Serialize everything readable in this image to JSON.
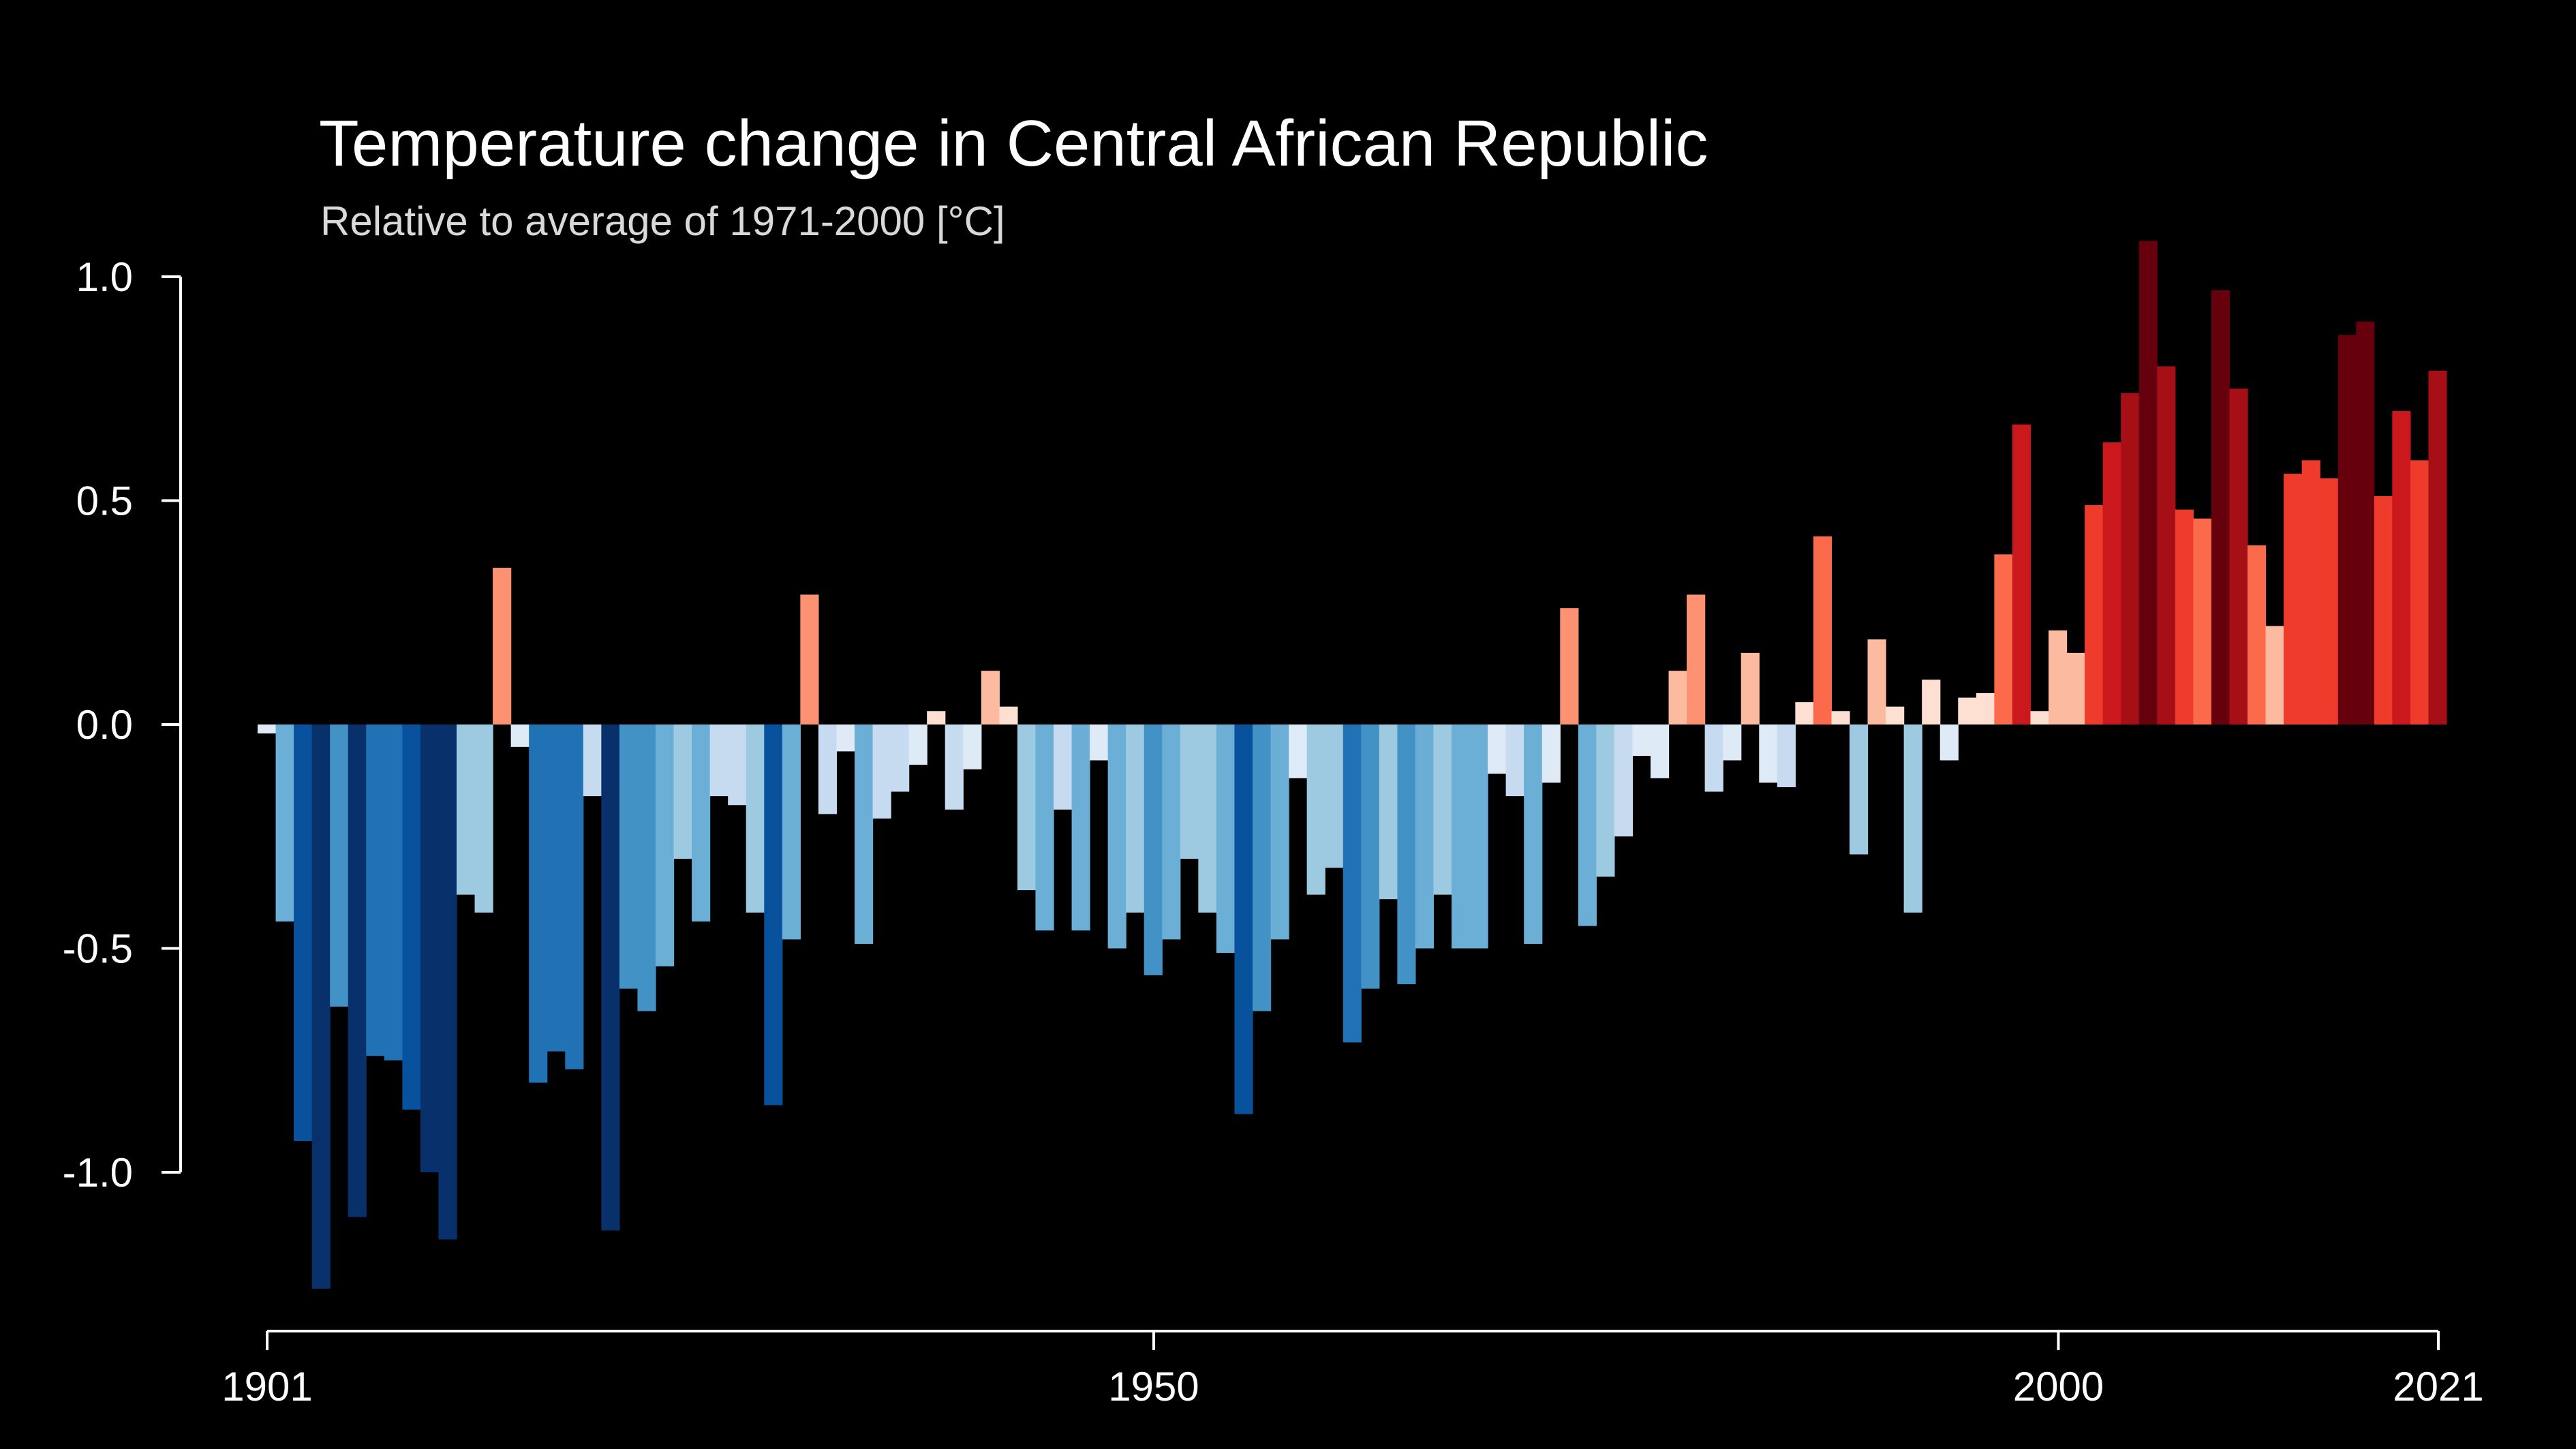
{
  "chart_data": {
    "type": "bar",
    "title": "Temperature change in Central African Republic",
    "subtitle": "Relative to average of 1971-2000  [°C]",
    "xlabel": "",
    "ylabel": "",
    "xlim": [
      1901,
      2021
    ],
    "ylim": [
      -1.35,
      1.1
    ],
    "grid": false,
    "legend": "none",
    "yticks": [
      {
        "value": 1.0,
        "label": "1.0"
      },
      {
        "value": 0.5,
        "label": "0.5"
      },
      {
        "value": 0.0,
        "label": "0.0"
      },
      {
        "value": -0.5,
        "label": "-0.5"
      },
      {
        "value": -1.0,
        "label": "-1.0"
      }
    ],
    "xticks": [
      {
        "value": 1901,
        "label": "1901"
      },
      {
        "value": 1950,
        "label": "1950"
      },
      {
        "value": 2000,
        "label": "2000"
      },
      {
        "value": 2021,
        "label": "2021"
      }
    ],
    "colors": {
      "background": "#000000",
      "text": "#ffffff",
      "cold_scale": [
        "#deebf7",
        "#c6dbef",
        "#9ecae1",
        "#6baed6",
        "#4292c6",
        "#2171b5",
        "#08519c",
        "#08306b"
      ],
      "warm_scale": [
        "#fee0d2",
        "#fcbba1",
        "#fc9272",
        "#fb6a4a",
        "#ef3b2c",
        "#cb181d",
        "#a50f15",
        "#67000d"
      ]
    },
    "x": [
      1901,
      1902,
      1903,
      1904,
      1905,
      1906,
      1907,
      1908,
      1909,
      1910,
      1911,
      1912,
      1913,
      1914,
      1915,
      1916,
      1917,
      1918,
      1919,
      1920,
      1921,
      1922,
      1923,
      1924,
      1925,
      1926,
      1927,
      1928,
      1929,
      1930,
      1931,
      1932,
      1933,
      1934,
      1935,
      1936,
      1937,
      1938,
      1939,
      1940,
      1941,
      1942,
      1943,
      1944,
      1945,
      1946,
      1947,
      1948,
      1949,
      1950,
      1951,
      1952,
      1953,
      1954,
      1955,
      1956,
      1957,
      1958,
      1959,
      1960,
      1961,
      1962,
      1963,
      1964,
      1965,
      1966,
      1967,
      1968,
      1969,
      1970,
      1971,
      1972,
      1973,
      1974,
      1975,
      1976,
      1977,
      1978,
      1979,
      1980,
      1981,
      1982,
      1983,
      1984,
      1985,
      1986,
      1987,
      1988,
      1989,
      1990,
      1991,
      1992,
      1993,
      1994,
      1995,
      1996,
      1997,
      1998,
      1999,
      2000,
      2001,
      2002,
      2003,
      2004,
      2005,
      2006,
      2007,
      2008,
      2009,
      2010,
      2011,
      2012,
      2013,
      2014,
      2015,
      2016,
      2017,
      2018,
      2019,
      2020,
      2021
    ],
    "values": [
      -0.02,
      -0.44,
      -0.93,
      -1.26,
      -0.63,
      -1.1,
      -0.74,
      -0.75,
      -0.86,
      -1.0,
      -1.15,
      -0.38,
      -0.42,
      0.35,
      -0.05,
      -0.8,
      -0.73,
      -0.77,
      -0.16,
      -1.13,
      -0.59,
      -0.64,
      -0.54,
      -0.3,
      -0.44,
      -0.16,
      -0.18,
      -0.42,
      -0.85,
      -0.48,
      0.29,
      -0.2,
      -0.06,
      -0.49,
      -0.21,
      -0.15,
      -0.09,
      0.03,
      -0.19,
      -0.1,
      0.12,
      0.04,
      -0.37,
      -0.46,
      -0.19,
      -0.46,
      -0.08,
      -0.5,
      -0.42,
      -0.56,
      -0.48,
      -0.3,
      -0.42,
      -0.51,
      -0.87,
      -0.64,
      -0.48,
      -0.12,
      -0.38,
      -0.32,
      -0.71,
      -0.59,
      -0.39,
      -0.58,
      -0.5,
      -0.38,
      -0.5,
      -0.5,
      -0.11,
      -0.16,
      -0.49,
      -0.13,
      0.26,
      -0.45,
      -0.34,
      -0.25,
      -0.07,
      -0.12,
      0.12,
      0.29,
      -0.15,
      -0.08,
      0.16,
      -0.13,
      -0.14,
      0.05,
      0.42,
      0.03,
      -0.29,
      0.19,
      0.04,
      -0.42,
      0.1,
      -0.08,
      0.06,
      0.07,
      0.38,
      0.67,
      0.03,
      0.21,
      0.16,
      0.49,
      0.63,
      0.74,
      1.08,
      0.8,
      0.48,
      0.46,
      0.97,
      0.75,
      0.4,
      0.22,
      0.56,
      0.59,
      0.55,
      0.87,
      0.9,
      0.51,
      0.7,
      0.59,
      0.79
    ]
  }
}
